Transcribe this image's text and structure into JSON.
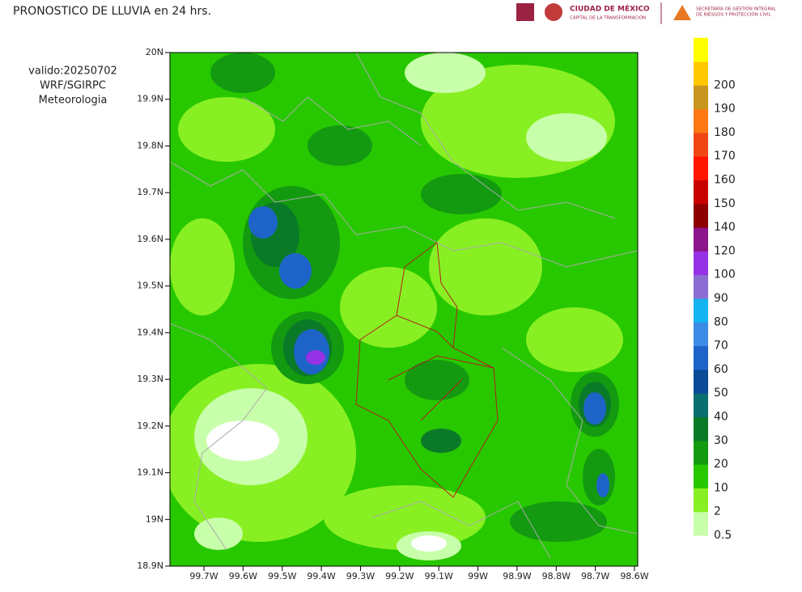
{
  "header": {
    "title": "PRONOSTICO DE LLUVIA en 24 hrs.",
    "logo_cdmx": "CIUDAD DE MÉXICO",
    "logo_cdmx_sub": "CAPITAL DE LA TRANSFORMACIÓN",
    "logo_sgirpc_1": "SECRETARÍA DE GESTIÓN INTEGRAL",
    "logo_sgirpc_2": "DE RIESGOS Y PROTECCIÓN CIVIL"
  },
  "info": [
    "valido:20250702",
    "WRF/SGIRPC",
    "Meteorologia"
  ],
  "map": {
    "yticks": [
      "20N",
      "19.9N",
      "19.8N",
      "19.7N",
      "19.6N",
      "19.5N",
      "19.4N",
      "19.3N",
      "19.2N",
      "19.1N",
      "19N",
      "18.9N"
    ],
    "xticks": [
      "99.7W",
      "99.6W",
      "99.5W",
      "99.4W",
      "99.3W",
      "99.2W",
      "99.1W",
      "99W",
      "98.9W",
      "98.8W",
      "98.7W",
      "98.6W"
    ]
  },
  "legend": {
    "labels": [
      "0.5",
      "2",
      "10",
      "20",
      "30",
      "40",
      "50",
      "60",
      "70",
      "80",
      "90",
      "100",
      "120",
      "140",
      "150",
      "160",
      "170",
      "180",
      "190",
      "200"
    ],
    "colors": [
      "#c8ffaa",
      "#88f022",
      "#28c800",
      "#139a10",
      "#0a7a28",
      "#0a6e6e",
      "#0a4a96",
      "#1e64c8",
      "#3a8ce6",
      "#14b4f0",
      "#8c6ed2",
      "#9632e6",
      "#8c148c",
      "#8c0000",
      "#c80000",
      "#ff1400",
      "#f04614",
      "#ff7814",
      "#c8961e",
      "#ffc800",
      "#ffff00"
    ]
  }
}
